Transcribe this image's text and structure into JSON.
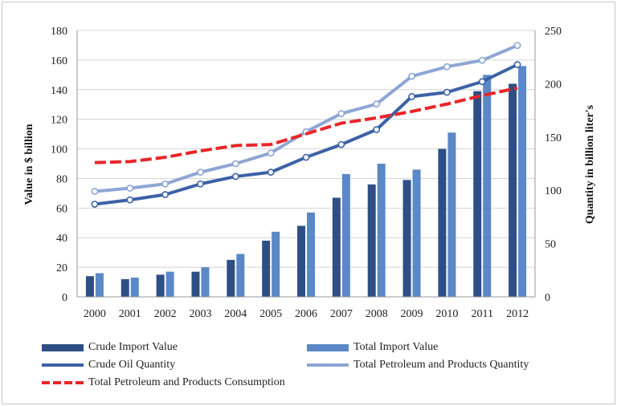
{
  "chart_data": {
    "type": "bar+line",
    "categories": [
      "2000",
      "2001",
      "2002",
      "2003",
      "2004",
      "2005",
      "2006",
      "2007",
      "2008",
      "2009",
      "2010",
      "2011",
      "2012"
    ],
    "left_axis": {
      "label": "Value in $ billion",
      "min": 0,
      "max": 180,
      "ticks": [
        "0",
        "20",
        "40",
        "60",
        "80",
        "100",
        "120",
        "140",
        "160",
        "180"
      ]
    },
    "right_axis": {
      "label": "Quantity in billion liter's",
      "min": 0,
      "max": 250,
      "ticks": [
        "0",
        "50",
        "100",
        "150",
        "200",
        "250"
      ]
    },
    "series": [
      {
        "name": "Crude Import Value",
        "kind": "bar",
        "axis": "left",
        "color": "#2e4f86",
        "values": [
          14,
          12,
          15,
          17,
          25,
          38,
          48,
          67,
          76,
          79,
          100,
          139,
          144
        ]
      },
      {
        "name": "Total Import Value",
        "kind": "bar",
        "axis": "left",
        "color": "#5b88c6",
        "values": [
          16,
          13,
          17,
          20,
          29,
          44,
          57,
          83,
          90,
          86,
          111,
          150,
          156
        ]
      },
      {
        "name": "Crude Oil Quantity",
        "kind": "line",
        "axis": "right",
        "color": "#3c62a6",
        "values": [
          87,
          91,
          96,
          106,
          113,
          117,
          131,
          143,
          157,
          188,
          192,
          202,
          218
        ]
      },
      {
        "name": "Total Petroleum and Products Quantity",
        "kind": "line",
        "axis": "right",
        "color": "#8ea6d4",
        "values": [
          99,
          102,
          106,
          117,
          125,
          135,
          155,
          172,
          181,
          207,
          216,
          222,
          236
        ]
      },
      {
        "name": "Total Petroleum and Products Consumption",
        "kind": "line",
        "axis": "right",
        "color": "#e8262a",
        "dashed": true,
        "values": [
          126,
          127,
          131,
          137,
          142,
          143,
          153,
          163,
          168,
          174,
          181,
          189,
          196
        ]
      }
    ]
  }
}
